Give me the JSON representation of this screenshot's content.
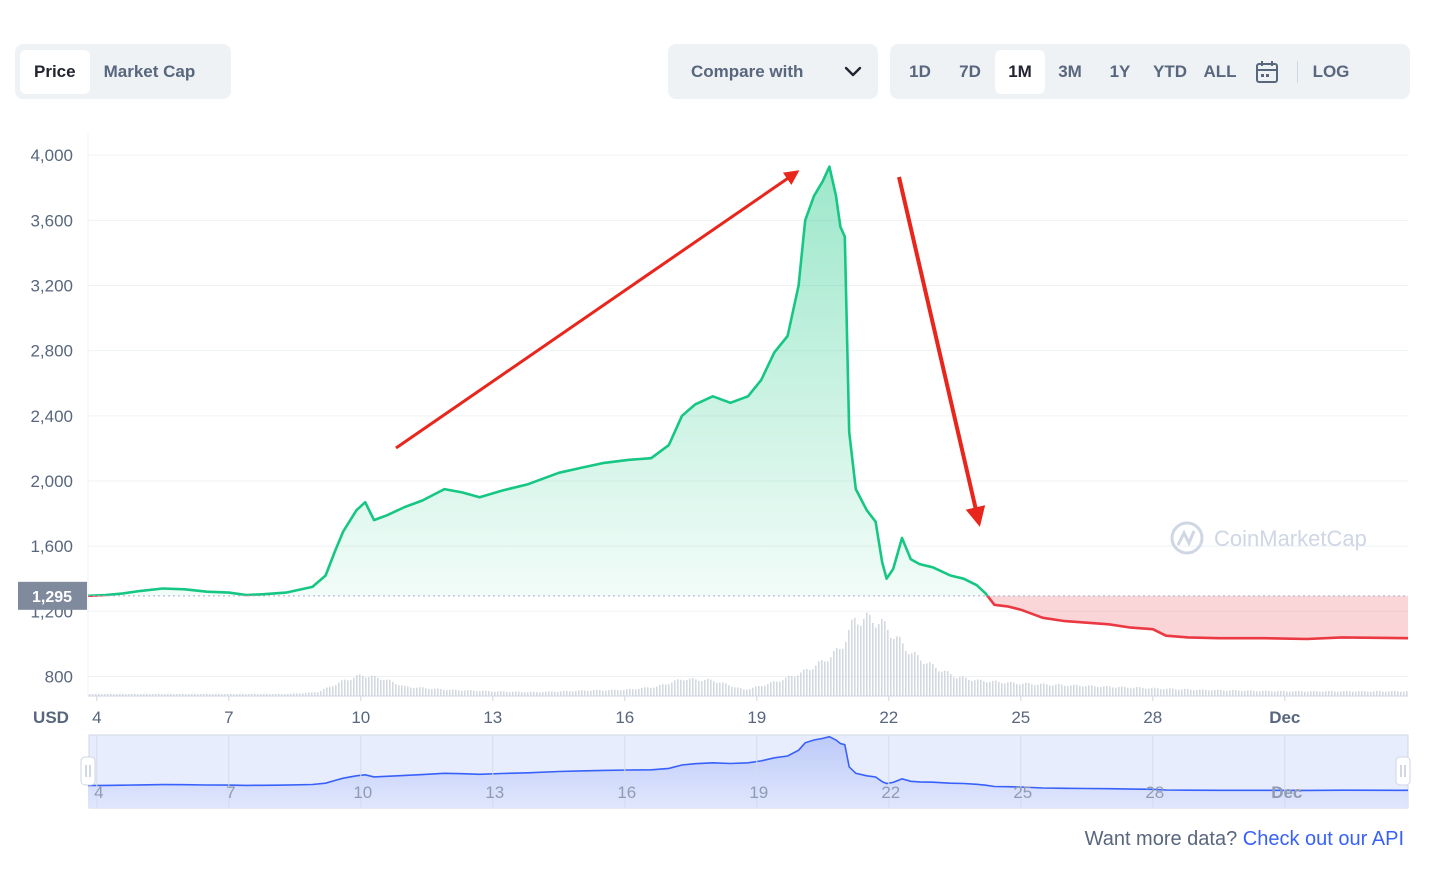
{
  "toolbar": {
    "tabs": [
      {
        "label": "Price",
        "active": true
      },
      {
        "label": "Market Cap",
        "active": false
      }
    ],
    "compare_label": "Compare with",
    "ranges": [
      {
        "label": "1D",
        "active": false
      },
      {
        "label": "7D",
        "active": false
      },
      {
        "label": "1M",
        "active": true
      },
      {
        "label": "3M",
        "active": false
      },
      {
        "label": "1Y",
        "active": false
      },
      {
        "label": "YTD",
        "active": false
      },
      {
        "label": "ALL",
        "active": false
      }
    ],
    "calendar_icon": "calendar-icon",
    "log_label": "LOG"
  },
  "chart_data": {
    "type": "area",
    "currency_label": "USD",
    "y_ticks": [
      800,
      1200,
      1600,
      2000,
      2400,
      2800,
      3200,
      3600,
      4000
    ],
    "y_tick_labels": [
      "800",
      "1,200",
      "1,600",
      "2,000",
      "2,400",
      "2,800",
      "3,200",
      "3,600",
      "4,000"
    ],
    "ylim": [
      680,
      4130
    ],
    "xlim": [
      3.8,
      33.8
    ],
    "x_ticks": [
      {
        "x": 4,
        "label": "4"
      },
      {
        "x": 7,
        "label": "7"
      },
      {
        "x": 10,
        "label": "10"
      },
      {
        "x": 13,
        "label": "13"
      },
      {
        "x": 16,
        "label": "16"
      },
      {
        "x": 19,
        "label": "19"
      },
      {
        "x": 22,
        "label": "22"
      },
      {
        "x": 25,
        "label": "25"
      },
      {
        "x": 28,
        "label": "28"
      },
      {
        "x": 31,
        "label": "Dec"
      }
    ],
    "reference_price": 1295,
    "reference_label": "1,295",
    "grid": true,
    "up_color": "#16c784",
    "down_color": "#ea3943",
    "price_series": [
      [
        3.8,
        1295
      ],
      [
        4.2,
        1300
      ],
      [
        4.6,
        1310
      ],
      [
        5,
        1325
      ],
      [
        5.5,
        1340
      ],
      [
        6,
        1335
      ],
      [
        6.5,
        1320
      ],
      [
        7,
        1315
      ],
      [
        7.4,
        1300
      ],
      [
        7.8,
        1305
      ],
      [
        8.3,
        1315
      ],
      [
        8.9,
        1350
      ],
      [
        9.2,
        1420
      ],
      [
        9.4,
        1560
      ],
      [
        9.6,
        1690
      ],
      [
        9.9,
        1820
      ],
      [
        10.1,
        1870
      ],
      [
        10.3,
        1760
      ],
      [
        10.6,
        1790
      ],
      [
        11,
        1840
      ],
      [
        11.4,
        1880
      ],
      [
        11.9,
        1950
      ],
      [
        12.3,
        1930
      ],
      [
        12.7,
        1900
      ],
      [
        13.2,
        1940
      ],
      [
        13.8,
        1980
      ],
      [
        14.5,
        2050
      ],
      [
        15,
        2080
      ],
      [
        15.5,
        2110
      ],
      [
        16.1,
        2130
      ],
      [
        16.6,
        2140
      ],
      [
        17,
        2220
      ],
      [
        17.3,
        2400
      ],
      [
        17.6,
        2470
      ],
      [
        18,
        2520
      ],
      [
        18.4,
        2480
      ],
      [
        18.8,
        2520
      ],
      [
        19.1,
        2620
      ],
      [
        19.4,
        2790
      ],
      [
        19.7,
        2890
      ],
      [
        19.95,
        3200
      ],
      [
        20.1,
        3600
      ],
      [
        20.3,
        3750
      ],
      [
        20.5,
        3840
      ],
      [
        20.65,
        3930
      ],
      [
        20.8,
        3750
      ],
      [
        20.9,
        3560
      ],
      [
        21,
        3500
      ],
      [
        21.1,
        2300
      ],
      [
        21.25,
        1950
      ],
      [
        21.5,
        1820
      ],
      [
        21.7,
        1750
      ],
      [
        21.85,
        1500
      ],
      [
        21.95,
        1400
      ],
      [
        22.1,
        1460
      ],
      [
        22.3,
        1650
      ],
      [
        22.5,
        1520
      ],
      [
        22.7,
        1490
      ],
      [
        23,
        1470
      ],
      [
        23.4,
        1420
      ],
      [
        23.7,
        1400
      ],
      [
        24,
        1360
      ],
      [
        24.2,
        1310
      ],
      [
        24.4,
        1240
      ],
      [
        24.7,
        1230
      ],
      [
        25,
        1210
      ],
      [
        25.5,
        1160
      ],
      [
        26,
        1140
      ],
      [
        26.5,
        1130
      ],
      [
        27,
        1120
      ],
      [
        27.5,
        1100
      ],
      [
        28,
        1090
      ],
      [
        28.3,
        1050
      ],
      [
        28.8,
        1040
      ],
      [
        29.5,
        1035
      ],
      [
        30.5,
        1035
      ],
      [
        31.5,
        1030
      ],
      [
        32.3,
        1040
      ],
      [
        33.8,
        1035
      ]
    ],
    "volume_series": [
      [
        3.8,
        0.01
      ],
      [
        6,
        0.01
      ],
      [
        8,
        0.015
      ],
      [
        9,
        0.05
      ],
      [
        9.6,
        0.2
      ],
      [
        10,
        0.27
      ],
      [
        10.5,
        0.22
      ],
      [
        11,
        0.12
      ],
      [
        12,
        0.08
      ],
      [
        13,
        0.06
      ],
      [
        14,
        0.05
      ],
      [
        15,
        0.07
      ],
      [
        16,
        0.08
      ],
      [
        16.7,
        0.12
      ],
      [
        17.3,
        0.22
      ],
      [
        18,
        0.2
      ],
      [
        18.7,
        0.08
      ],
      [
        19,
        0.12
      ],
      [
        19.5,
        0.2
      ],
      [
        20,
        0.3
      ],
      [
        20.5,
        0.45
      ],
      [
        20.9,
        0.62
      ],
      [
        21.2,
        0.98
      ],
      [
        21.5,
        1
      ],
      [
        21.8,
        0.95
      ],
      [
        22.1,
        0.78
      ],
      [
        22.5,
        0.55
      ],
      [
        23,
        0.38
      ],
      [
        23.5,
        0.25
      ],
      [
        24,
        0.2
      ],
      [
        25,
        0.16
      ],
      [
        26,
        0.14
      ],
      [
        27,
        0.12
      ],
      [
        28,
        0.1
      ],
      [
        29,
        0.08
      ],
      [
        31,
        0.06
      ],
      [
        33.8,
        0.06
      ]
    ],
    "navigator_x_labels": [
      "4",
      "7",
      "10",
      "13",
      "16",
      "19",
      "22",
      "25",
      "28",
      "Dec"
    ],
    "watermark": "CoinMarketCap"
  },
  "footer": {
    "text": "Want more data?",
    "link_label": "Check out our API"
  }
}
